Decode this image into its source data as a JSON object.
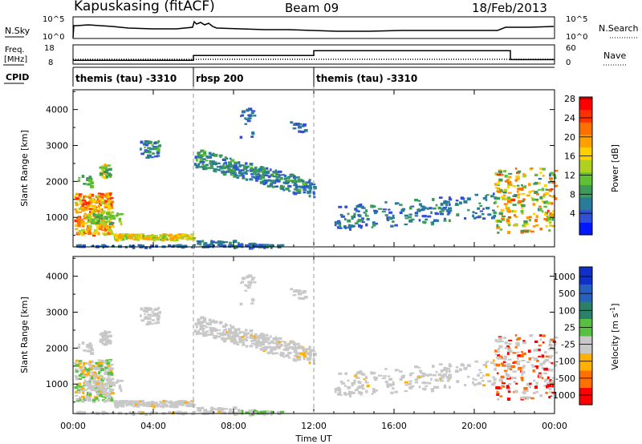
{
  "header": {
    "title": "Kapuskasing (fitACF)",
    "beam": "Beam 09",
    "date": "18/Feb/2013"
  },
  "chart_data": [
    {
      "type": "line",
      "panel": "noise",
      "left_label": "N.Sky",
      "right_label": "N.Search",
      "left_ticks": [
        "10^5",
        "10^0"
      ],
      "right_ticks": [
        "10^5",
        "10^0"
      ]
    },
    {
      "type": "line",
      "panel": "frequency",
      "left_label_top": "Freq.",
      "left_label_bottom": "[MHz]",
      "right_label": "Nave",
      "left_ticks": [
        "18",
        "8"
      ],
      "right_ticks": [
        "60",
        "0"
      ],
      "frequency_mhz": [
        {
          "t": 0.0,
          "v": 10.5
        },
        {
          "t": 6.0,
          "v": 10.5
        },
        {
          "t": 6.0,
          "v": 10.5
        },
        {
          "t": 12.0,
          "v": 10.5
        }
      ],
      "nave_steps": [
        {
          "t": 0.0,
          "v": 12
        },
        {
          "t": 6.0,
          "v": 12
        },
        {
          "t": 6.0,
          "v": 27
        },
        {
          "t": 12.0,
          "v": 27
        },
        {
          "t": 12.0,
          "v": 42
        },
        {
          "t": 21.8,
          "v": 42
        },
        {
          "t": 21.8,
          "v": 14
        },
        {
          "t": 24.0,
          "v": 14
        }
      ]
    },
    {
      "type": "table",
      "panel": "cpid",
      "label": "CPID",
      "segments": [
        {
          "start": 0,
          "end": 6,
          "name": "themis (tau) -3310"
        },
        {
          "start": 6,
          "end": 12,
          "name": "rbsp 200"
        },
        {
          "start": 12,
          "end": 24,
          "name": "themis (tau) -3310"
        }
      ]
    },
    {
      "type": "heatmap",
      "panel": "power",
      "ylabel": "Slant Range [km]",
      "ylim": [
        180,
        4550
      ],
      "y_ticks": [
        1000,
        2000,
        3000,
        4000
      ],
      "colorbar_label": "Power [dB]",
      "colorbar_ticks": [
        4,
        8,
        12,
        16,
        20,
        24,
        28
      ],
      "colorbar_colors": [
        "#0018ff",
        "#3050d8",
        "#2a7a9a",
        "#3d9a58",
        "#60c030",
        "#b0d020",
        "#ffd000",
        "#ffa000",
        "#ff7000",
        "#ff3000",
        "#ff0000"
      ]
    },
    {
      "type": "heatmap",
      "panel": "velocity",
      "ylabel": "Slant Range [km]",
      "ylim": [
        180,
        4550
      ],
      "y_ticks": [
        1000,
        2000,
        3000,
        4000
      ],
      "xlabel": "Time UT",
      "x_ticks": [
        "00:00",
        "04:00",
        "08:00",
        "12:00",
        "16:00",
        "20:00",
        "00:00"
      ],
      "colorbar_label": "Velocity [m s^-1]",
      "colorbar_ticks": [
        "1000",
        "500",
        "100",
        "25",
        "-25",
        "-100",
        "-500",
        "-1000"
      ],
      "colorbar_colors": [
        "#1030c8",
        "#2860c0",
        "#2a8068",
        "#58c040",
        "#c8c8c8",
        "#ffb000",
        "#ff7000",
        "#ff0000"
      ]
    }
  ]
}
